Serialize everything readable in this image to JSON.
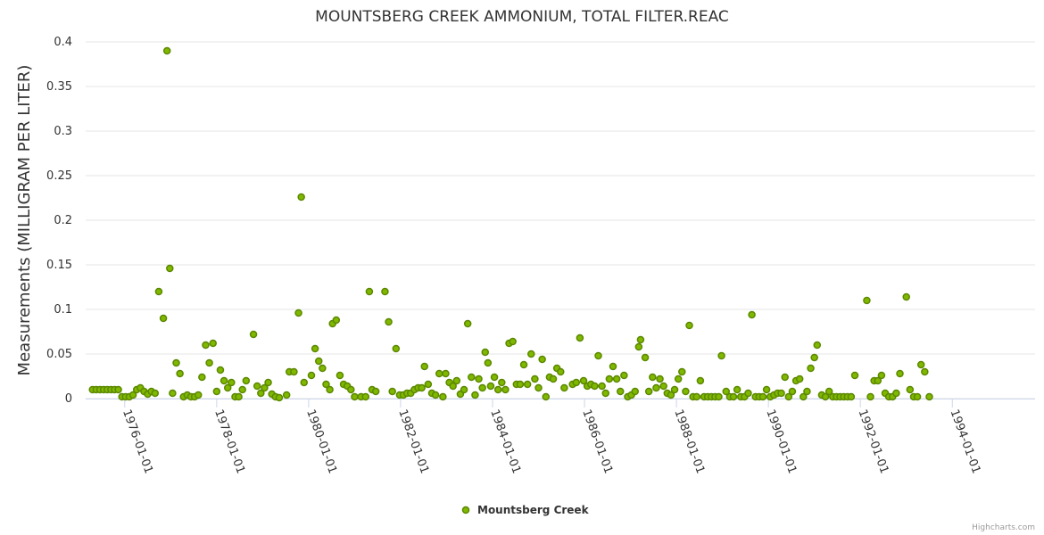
{
  "chart_data": {
    "type": "scatter",
    "title": "MOUNTSBERG CREEK AMMONIUM, TOTAL FILTER.REAC",
    "xlabel": "",
    "ylabel": "Measurements (MILLIGRAM PER LITER)",
    "ylim": [
      0,
      0.4
    ],
    "yticks": [
      0,
      0.05,
      0.1,
      0.15,
      0.2,
      0.25,
      0.3,
      0.35,
      0.4
    ],
    "ytick_labels": [
      "0",
      "0.05",
      "0.1",
      "0.15",
      "0.2",
      "0.25",
      "0.3",
      "0.35",
      "0.4"
    ],
    "xlim": [
      1975.15,
      1995.8
    ],
    "xticks": [
      1976,
      1978,
      1980,
      1982,
      1984,
      1986,
      1988,
      1990,
      1992,
      1994
    ],
    "xtick_labels": [
      "1976-01-01",
      "1978-01-01",
      "1980-01-01",
      "1982-01-01",
      "1984-01-01",
      "1986-01-01",
      "1988-01-01",
      "1990-01-01",
      "1992-01-01",
      "1994-01-01"
    ],
    "grid": true,
    "legend_position": "bottom-center",
    "series": [
      {
        "name": "Mountsberg Creek",
        "color": "#80b800",
        "points": [
          [
            1975.3,
            0.01
          ],
          [
            1975.38,
            0.01
          ],
          [
            1975.46,
            0.01
          ],
          [
            1975.54,
            0.01
          ],
          [
            1975.62,
            0.01
          ],
          [
            1975.7,
            0.01
          ],
          [
            1975.78,
            0.01
          ],
          [
            1975.86,
            0.01
          ],
          [
            1975.94,
            0.002
          ],
          [
            1976.02,
            0.002
          ],
          [
            1976.1,
            0.002
          ],
          [
            1976.18,
            0.004
          ],
          [
            1976.26,
            0.01
          ],
          [
            1976.34,
            0.012
          ],
          [
            1976.42,
            0.008
          ],
          [
            1976.5,
            0.005
          ],
          [
            1976.58,
            0.008
          ],
          [
            1976.66,
            0.006
          ],
          [
            1976.74,
            0.12
          ],
          [
            1976.84,
            0.09
          ],
          [
            1976.92,
            0.39
          ],
          [
            1976.98,
            0.146
          ],
          [
            1977.04,
            0.006
          ],
          [
            1977.12,
            0.04
          ],
          [
            1977.2,
            0.028
          ],
          [
            1977.28,
            0.002
          ],
          [
            1977.36,
            0.004
          ],
          [
            1977.44,
            0.002
          ],
          [
            1977.52,
            0.002
          ],
          [
            1977.6,
            0.004
          ],
          [
            1977.68,
            0.024
          ],
          [
            1977.76,
            0.06
          ],
          [
            1977.84,
            0.04
          ],
          [
            1977.92,
            0.062
          ],
          [
            1978.0,
            0.008
          ],
          [
            1978.08,
            0.032
          ],
          [
            1978.16,
            0.02
          ],
          [
            1978.24,
            0.012
          ],
          [
            1978.32,
            0.018
          ],
          [
            1978.4,
            0.002
          ],
          [
            1978.48,
            0.002
          ],
          [
            1978.56,
            0.01
          ],
          [
            1978.64,
            0.02
          ],
          [
            1978.8,
            0.072
          ],
          [
            1978.88,
            0.014
          ],
          [
            1978.96,
            0.006
          ],
          [
            1979.04,
            0.012
          ],
          [
            1979.12,
            0.018
          ],
          [
            1979.2,
            0.005
          ],
          [
            1979.28,
            0.002
          ],
          [
            1979.36,
            0.001
          ],
          [
            1979.52,
            0.004
          ],
          [
            1979.58,
            0.03
          ],
          [
            1979.68,
            0.03
          ],
          [
            1979.78,
            0.096
          ],
          [
            1979.84,
            0.226
          ],
          [
            1979.9,
            0.018
          ],
          [
            1980.06,
            0.026
          ],
          [
            1980.14,
            0.056
          ],
          [
            1980.22,
            0.042
          ],
          [
            1980.3,
            0.034
          ],
          [
            1980.38,
            0.016
          ],
          [
            1980.46,
            0.01
          ],
          [
            1980.52,
            0.084
          ],
          [
            1980.6,
            0.088
          ],
          [
            1980.68,
            0.026
          ],
          [
            1980.76,
            0.016
          ],
          [
            1980.84,
            0.014
          ],
          [
            1980.92,
            0.01
          ],
          [
            1981.0,
            0.002
          ],
          [
            1981.14,
            0.002
          ],
          [
            1981.24,
            0.002
          ],
          [
            1981.32,
            0.12
          ],
          [
            1981.38,
            0.01
          ],
          [
            1981.46,
            0.008
          ],
          [
            1981.66,
            0.12
          ],
          [
            1981.74,
            0.086
          ],
          [
            1981.82,
            0.008
          ],
          [
            1981.9,
            0.056
          ],
          [
            1981.98,
            0.004
          ],
          [
            1982.06,
            0.004
          ],
          [
            1982.14,
            0.006
          ],
          [
            1982.22,
            0.006
          ],
          [
            1982.3,
            0.01
          ],
          [
            1982.38,
            0.012
          ],
          [
            1982.46,
            0.012
          ],
          [
            1982.52,
            0.036
          ],
          [
            1982.6,
            0.016
          ],
          [
            1982.68,
            0.006
          ],
          [
            1982.76,
            0.004
          ],
          [
            1982.84,
            0.028
          ],
          [
            1982.92,
            0.002
          ],
          [
            1982.98,
            0.028
          ],
          [
            1983.06,
            0.018
          ],
          [
            1983.14,
            0.014
          ],
          [
            1983.22,
            0.02
          ],
          [
            1983.3,
            0.005
          ],
          [
            1983.38,
            0.01
          ],
          [
            1983.46,
            0.084
          ],
          [
            1983.54,
            0.024
          ],
          [
            1983.62,
            0.004
          ],
          [
            1983.7,
            0.022
          ],
          [
            1983.78,
            0.012
          ],
          [
            1983.84,
            0.052
          ],
          [
            1983.9,
            0.04
          ],
          [
            1983.96,
            0.014
          ],
          [
            1984.04,
            0.024
          ],
          [
            1984.12,
            0.01
          ],
          [
            1984.2,
            0.018
          ],
          [
            1984.28,
            0.01
          ],
          [
            1984.36,
            0.062
          ],
          [
            1984.44,
            0.064
          ],
          [
            1984.52,
            0.016
          ],
          [
            1984.6,
            0.016
          ],
          [
            1984.68,
            0.038
          ],
          [
            1984.76,
            0.016
          ],
          [
            1984.84,
            0.05
          ],
          [
            1984.92,
            0.022
          ],
          [
            1985.0,
            0.012
          ],
          [
            1985.08,
            0.044
          ],
          [
            1985.16,
            0.002
          ],
          [
            1985.24,
            0.024
          ],
          [
            1985.32,
            0.022
          ],
          [
            1985.4,
            0.034
          ],
          [
            1985.48,
            0.03
          ],
          [
            1985.56,
            0.012
          ],
          [
            1985.74,
            0.016
          ],
          [
            1985.82,
            0.018
          ],
          [
            1985.9,
            0.068
          ],
          [
            1985.98,
            0.02
          ],
          [
            1986.06,
            0.014
          ],
          [
            1986.14,
            0.016
          ],
          [
            1986.22,
            0.014
          ],
          [
            1986.3,
            0.048
          ],
          [
            1986.38,
            0.014
          ],
          [
            1986.46,
            0.006
          ],
          [
            1986.54,
            0.022
          ],
          [
            1986.62,
            0.036
          ],
          [
            1986.7,
            0.022
          ],
          [
            1986.78,
            0.008
          ],
          [
            1986.86,
            0.026
          ],
          [
            1986.94,
            0.002
          ],
          [
            1987.02,
            0.004
          ],
          [
            1987.1,
            0.008
          ],
          [
            1987.18,
            0.058
          ],
          [
            1987.22,
            0.066
          ],
          [
            1987.32,
            0.046
          ],
          [
            1987.4,
            0.008
          ],
          [
            1987.48,
            0.024
          ],
          [
            1987.56,
            0.012
          ],
          [
            1987.64,
            0.022
          ],
          [
            1987.72,
            0.014
          ],
          [
            1987.8,
            0.006
          ],
          [
            1987.88,
            0.004
          ],
          [
            1987.96,
            0.01
          ],
          [
            1988.04,
            0.022
          ],
          [
            1988.12,
            0.03
          ],
          [
            1988.2,
            0.008
          ],
          [
            1988.28,
            0.082
          ],
          [
            1988.36,
            0.002
          ],
          [
            1988.44,
            0.002
          ],
          [
            1988.52,
            0.02
          ],
          [
            1988.6,
            0.002
          ],
          [
            1988.68,
            0.002
          ],
          [
            1988.76,
            0.002
          ],
          [
            1988.84,
            0.002
          ],
          [
            1988.92,
            0.002
          ],
          [
            1988.98,
            0.048
          ],
          [
            1989.08,
            0.008
          ],
          [
            1989.16,
            0.002
          ],
          [
            1989.24,
            0.002
          ],
          [
            1989.32,
            0.01
          ],
          [
            1989.4,
            0.002
          ],
          [
            1989.48,
            0.002
          ],
          [
            1989.56,
            0.006
          ],
          [
            1989.64,
            0.094
          ],
          [
            1989.72,
            0.002
          ],
          [
            1989.8,
            0.002
          ],
          [
            1989.88,
            0.002
          ],
          [
            1989.96,
            0.01
          ],
          [
            1990.04,
            0.002
          ],
          [
            1990.12,
            0.004
          ],
          [
            1990.2,
            0.006
          ],
          [
            1990.28,
            0.006
          ],
          [
            1990.36,
            0.024
          ],
          [
            1990.44,
            0.002
          ],
          [
            1990.52,
            0.008
          ],
          [
            1990.6,
            0.02
          ],
          [
            1990.68,
            0.022
          ],
          [
            1990.76,
            0.002
          ],
          [
            1990.84,
            0.008
          ],
          [
            1990.92,
            0.034
          ],
          [
            1991.0,
            0.046
          ],
          [
            1991.06,
            0.06
          ],
          [
            1991.16,
            0.004
          ],
          [
            1991.24,
            0.002
          ],
          [
            1991.32,
            0.008
          ],
          [
            1991.4,
            0.002
          ],
          [
            1991.48,
            0.002
          ],
          [
            1991.56,
            0.002
          ],
          [
            1991.64,
            0.002
          ],
          [
            1991.72,
            0.002
          ],
          [
            1991.8,
            0.002
          ],
          [
            1991.88,
            0.026
          ],
          [
            1992.14,
            0.11
          ],
          [
            1992.22,
            0.002
          ],
          [
            1992.3,
            0.02
          ],
          [
            1992.38,
            0.02
          ],
          [
            1992.46,
            0.026
          ],
          [
            1992.54,
            0.006
          ],
          [
            1992.62,
            0.002
          ],
          [
            1992.7,
            0.002
          ],
          [
            1992.78,
            0.006
          ],
          [
            1992.86,
            0.028
          ],
          [
            1993.0,
            0.114
          ],
          [
            1993.08,
            0.01
          ],
          [
            1993.16,
            0.002
          ],
          [
            1993.24,
            0.002
          ],
          [
            1993.32,
            0.038
          ],
          [
            1993.4,
            0.03
          ],
          [
            1993.5,
            0.002
          ]
        ]
      }
    ]
  },
  "credits": "Highcharts.com"
}
